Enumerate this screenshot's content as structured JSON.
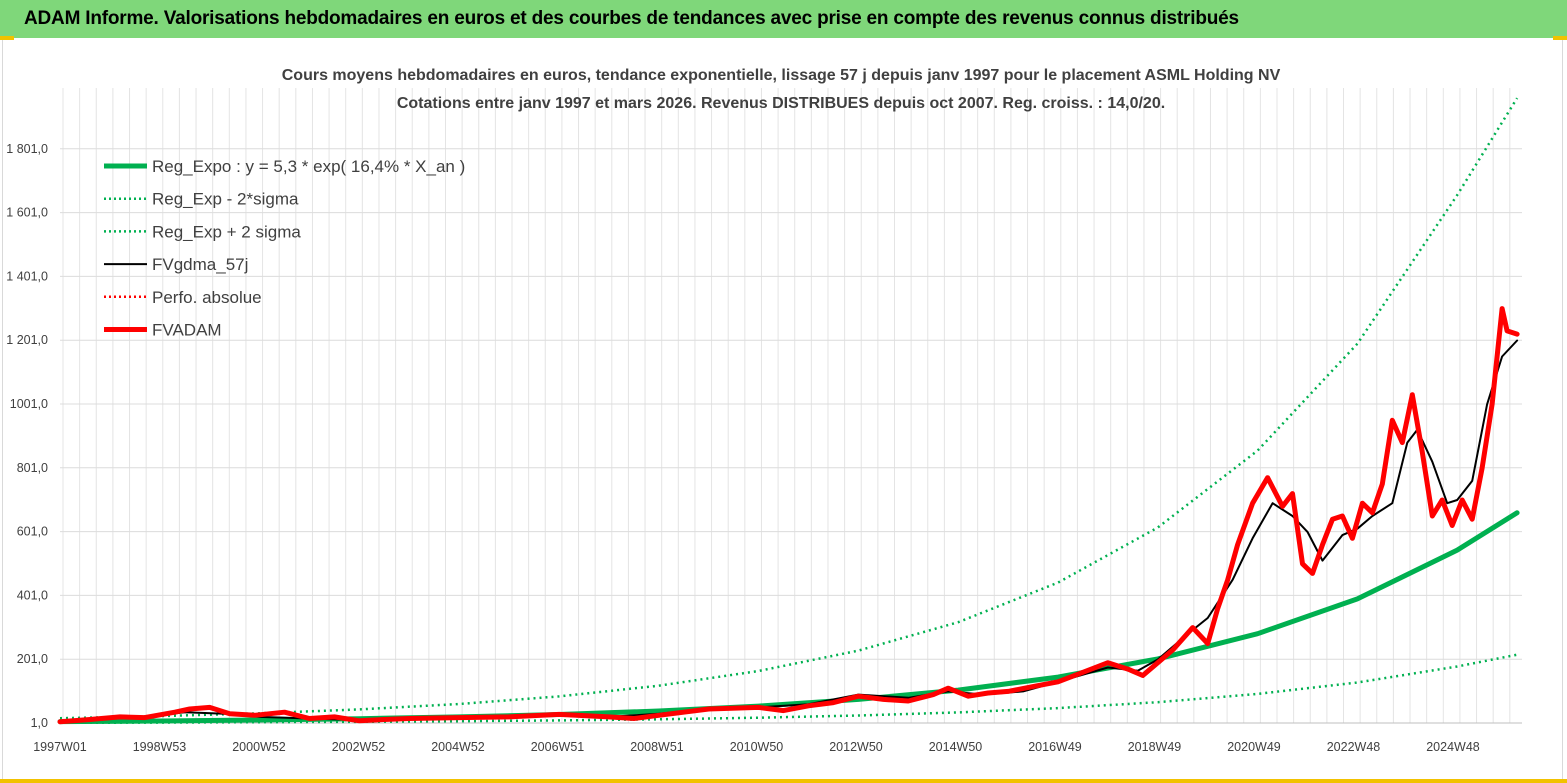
{
  "header": {
    "title": "ADAM Informe. Valorisations hebdomadaires en euros et des courbes de tendances avec prise en compte des revenus connus distribués"
  },
  "colors": {
    "banner": "#7fd77a",
    "accent": "#f2c200",
    "reg_expo": "#00b050",
    "fvgdma": "#000000",
    "fvadam": "#ff0000",
    "perfo": "#ff0000"
  },
  "chart_data": {
    "type": "line",
    "title": "Cours moyens hebdomadaires en euros, tendance exponentielle, lissage 57 j depuis janv 1997 pour le placement ASML Holding NV",
    "subtitle": "Cotations entre janv 1997 et mars 2026. Revenus DISTRIBUES depuis oct 2007. Reg. croiss. : 14,0/20.",
    "xlabel": "",
    "ylabel": "",
    "ylim": [
      1,
      1950
    ],
    "xlim": [
      1997.0,
      2026.2
    ],
    "grid": true,
    "legend_position": "top-left",
    "x_tick_labels": [
      "1997W01",
      "1998W53",
      "2000W52",
      "2002W52",
      "2004W52",
      "2006W51",
      "2008W51",
      "2010W50",
      "2012W50",
      "2014W50",
      "2016W49",
      "2018W49",
      "2020W49",
      "2022W48",
      "2024W48"
    ],
    "y_tick_labels": [
      "1,0",
      "201,0",
      "401,0",
      "601,0",
      "801,0",
      "1001,0",
      "1 201,0",
      "1 401,0",
      "1 601,0",
      "1 801,0"
    ],
    "y_tick_values": [
      1,
      201,
      401,
      601,
      801,
      1001,
      1201,
      1401,
      1601,
      1801
    ],
    "series": [
      {
        "name": "Reg_Expo : y = 5,3 * exp( 16,4% *  X_an )",
        "style": "solid-thick",
        "color": "#00b050",
        "x": [
          1997,
          1999,
          2001,
          2003,
          2005,
          2007,
          2009,
          2011,
          2013,
          2015,
          2017,
          2019,
          2021,
          2023,
          2025,
          2026.2
        ],
        "y": [
          5.3,
          7.4,
          10.3,
          14.4,
          20.0,
          27.8,
          38.7,
          53.9,
          75.0,
          104,
          145,
          202,
          281,
          390,
          543,
          660
        ]
      },
      {
        "name": "Reg_Exp - 2*sigma",
        "style": "dotted",
        "color": "#00b050",
        "x": [
          1997,
          1999,
          2001,
          2003,
          2005,
          2007,
          2009,
          2011,
          2013,
          2015,
          2017,
          2019,
          2021,
          2023,
          2025,
          2026.2
        ],
        "y": [
          1.7,
          2.4,
          3.4,
          4.7,
          6.5,
          9.1,
          12.7,
          17.7,
          24.6,
          34.2,
          47.6,
          66.2,
          92.1,
          128,
          178,
          215
        ]
      },
      {
        "name": "Reg_Exp + 2 sigma",
        "style": "dotted",
        "color": "#00b050",
        "x": [
          1997,
          1999,
          2001,
          2003,
          2005,
          2007,
          2009,
          2011,
          2013,
          2015,
          2017,
          2019,
          2021,
          2023,
          2025,
          2026.2
        ],
        "y": [
          16,
          22.5,
          31.3,
          43.6,
          60.7,
          84.5,
          118,
          164,
          228,
          317,
          441,
          614,
          855,
          1190,
          1656,
          1960
        ]
      },
      {
        "name": "FVgdma_57j",
        "style": "solid",
        "color": "#000000",
        "x": [
          1997,
          1998,
          1998.7,
          1999.5,
          2000.3,
          2001,
          2002,
          2003,
          2004,
          2005,
          2006,
          2007,
          2008,
          2009,
          2010,
          2011,
          2012,
          2013,
          2014,
          2014.8,
          2015.5,
          2016.3,
          2017,
          2018,
          2018.6,
          2019,
          2019.6,
          2020,
          2020.5,
          2020.9,
          2021.3,
          2021.7,
          2022,
          2022.3,
          2022.7,
          2023,
          2023.3,
          2023.7,
          2024,
          2024.2,
          2024.5,
          2024.8,
          2025,
          2025.3,
          2025.6,
          2025.9,
          2026.2
        ],
        "y": [
          5,
          15,
          20,
          35,
          30,
          20,
          15,
          10,
          15,
          20,
          20,
          25,
          20,
          30,
          45,
          50,
          60,
          90,
          80,
          100,
          90,
          100,
          130,
          175,
          165,
          200,
          280,
          330,
          450,
          580,
          690,
          650,
          600,
          510,
          590,
          610,
          650,
          690,
          880,
          920,
          820,
          690,
          700,
          760,
          1000,
          1150,
          1200
        ]
      },
      {
        "name": "Perfo. absolue",
        "style": "dotted",
        "color": "#ff0000",
        "x": [],
        "y": []
      },
      {
        "name": "FVADAM",
        "style": "solid-thick",
        "color": "#ff0000",
        "x": [
          1997,
          1997.6,
          1998.2,
          1998.7,
          1999.3,
          1999.6,
          2000.0,
          2000.4,
          2000.9,
          2001.5,
          2002.0,
          2002.5,
          2003.0,
          2003.5,
          2004.0,
          2005.0,
          2006.0,
          2007.0,
          2008.0,
          2008.5,
          2009.0,
          2010.0,
          2011.0,
          2011.5,
          2012.0,
          2012.5,
          2013.0,
          2013.5,
          2014.0,
          2014.5,
          2014.8,
          2015.2,
          2015.6,
          2016.0,
          2016.5,
          2017.0,
          2017.5,
          2018.0,
          2018.4,
          2018.7,
          2019.0,
          2019.3,
          2019.7,
          2020.0,
          2020.2,
          2020.4,
          2020.6,
          2020.9,
          2021.2,
          2021.5,
          2021.7,
          2021.9,
          2022.1,
          2022.3,
          2022.5,
          2022.7,
          2022.9,
          2023.1,
          2023.3,
          2023.5,
          2023.7,
          2023.9,
          2024.1,
          2024.3,
          2024.5,
          2024.7,
          2024.9,
          2025.1,
          2025.3,
          2025.5,
          2025.7,
          2025.9,
          2026.0,
          2026.2
        ],
        "y": [
          5,
          12,
          20,
          18,
          35,
          45,
          50,
          30,
          25,
          35,
          15,
          20,
          8,
          12,
          15,
          18,
          20,
          28,
          20,
          15,
          25,
          45,
          50,
          40,
          55,
          65,
          85,
          75,
          70,
          90,
          110,
          85,
          95,
          100,
          115,
          130,
          160,
          190,
          170,
          150,
          190,
          230,
          300,
          250,
          360,
          450,
          560,
          690,
          770,
          680,
          720,
          500,
          470,
          560,
          640,
          650,
          580,
          690,
          660,
          750,
          950,
          880,
          1030,
          850,
          650,
          700,
          620,
          700,
          640,
          800,
          1000,
          1300,
          1230,
          1220
        ]
      }
    ]
  }
}
